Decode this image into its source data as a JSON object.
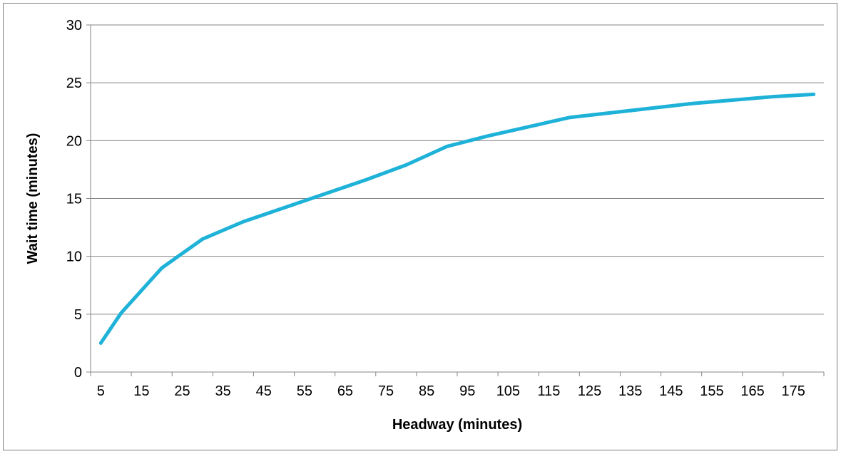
{
  "chart_data": {
    "type": "line",
    "title": "",
    "xlabel": "Headway (minutes)",
    "ylabel": "Wait time (minutes)",
    "x": [
      5,
      10,
      20,
      30,
      40,
      50,
      60,
      70,
      80,
      90,
      100,
      110,
      120,
      130,
      140,
      150,
      160,
      170,
      180
    ],
    "x_ticks": [
      5,
      15,
      25,
      35,
      45,
      55,
      65,
      75,
      85,
      95,
      105,
      115,
      125,
      135,
      145,
      155,
      165,
      175
    ],
    "xlim": [
      2.5,
      182.5
    ],
    "ylim": [
      0,
      30
    ],
    "y_ticks": [
      0,
      5,
      10,
      15,
      20,
      25,
      30
    ],
    "grid": true,
    "legend": "none",
    "series": [
      {
        "color": "#1fb2d8",
        "values": [
          2.5,
          5.1,
          9.0,
          11.5,
          13.0,
          14.2,
          15.4,
          16.6,
          17.9,
          19.5,
          20.4,
          21.2,
          22.0,
          22.4,
          22.8,
          23.2,
          23.5,
          23.8,
          24.0
        ]
      }
    ]
  }
}
